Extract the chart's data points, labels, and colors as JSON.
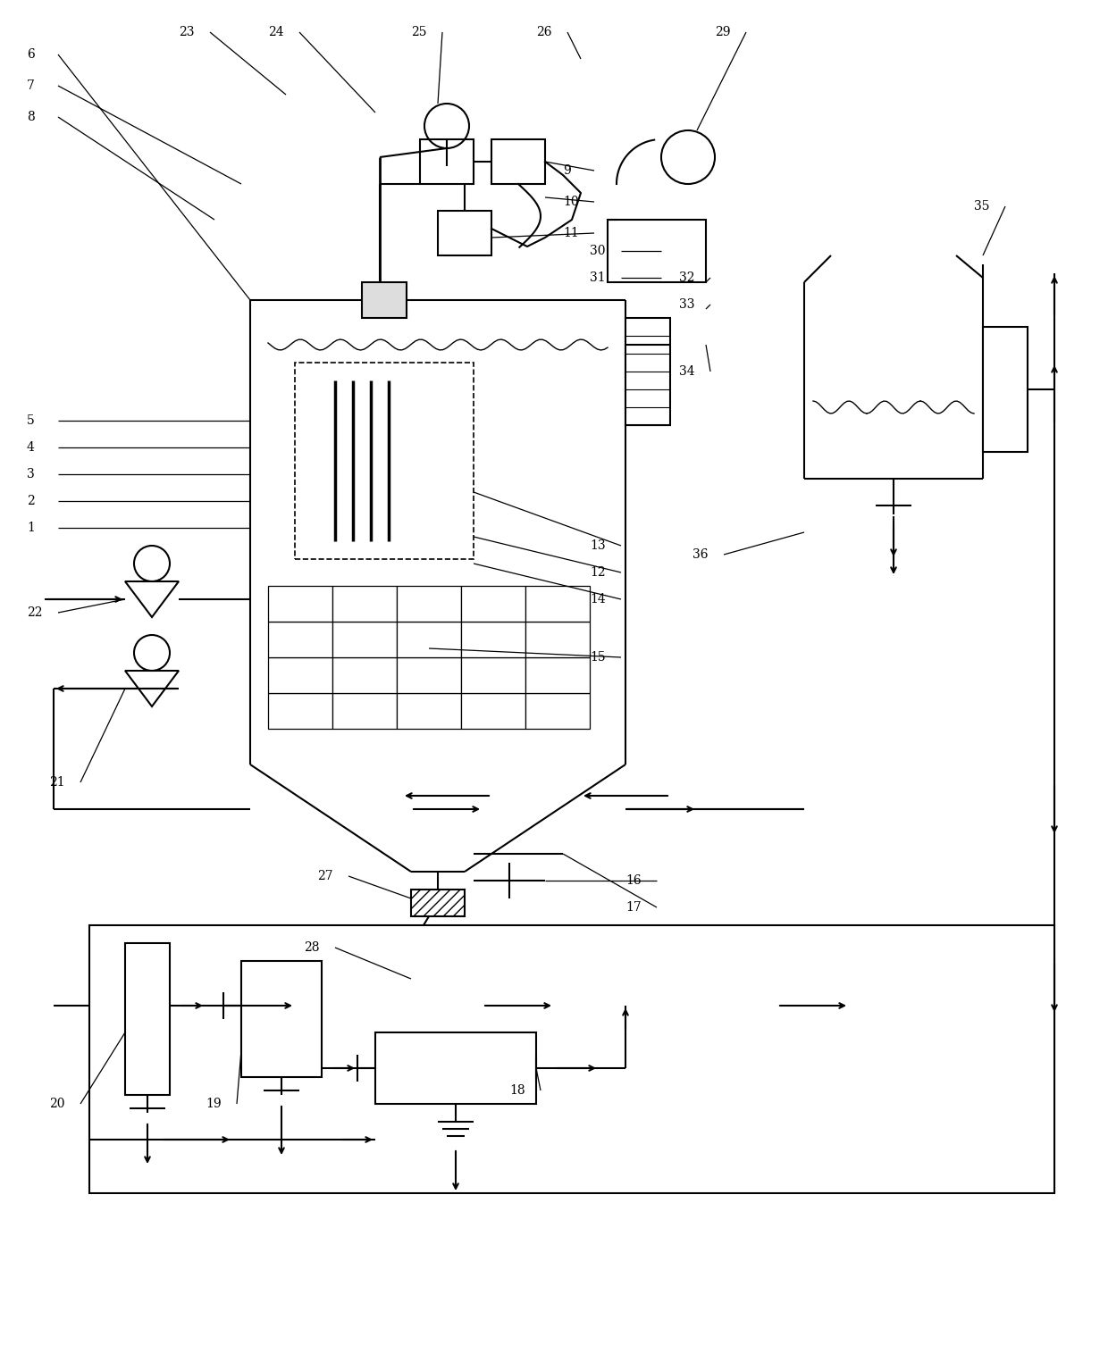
{
  "bg_color": "#ffffff",
  "lc": "#000000",
  "lw": 1.5,
  "fig_width": 12.4,
  "fig_height": 15.06,
  "labels": [
    [
      "1",
      3.0,
      91.5
    ],
    [
      "2",
      3.0,
      94.5
    ],
    [
      "3",
      3.0,
      97.5
    ],
    [
      "4",
      3.0,
      100.5
    ],
    [
      "5",
      3.0,
      103.5
    ],
    [
      "6",
      3.0,
      144.5
    ],
    [
      "7",
      3.0,
      141.0
    ],
    [
      "8",
      3.0,
      137.5
    ],
    [
      "9",
      63.0,
      131.5
    ],
    [
      "10",
      63.0,
      128.0
    ],
    [
      "11",
      63.0,
      124.5
    ],
    [
      "12",
      66.0,
      86.5
    ],
    [
      "13",
      66.0,
      89.5
    ],
    [
      "14",
      66.0,
      83.5
    ],
    [
      "15",
      66.0,
      77.0
    ],
    [
      "16",
      70.0,
      52.0
    ],
    [
      "17",
      70.0,
      49.0
    ],
    [
      "18",
      57.0,
      28.5
    ],
    [
      "19",
      23.0,
      27.0
    ],
    [
      "20",
      5.5,
      27.0
    ],
    [
      "21",
      5.5,
      63.0
    ],
    [
      "22",
      3.0,
      82.0
    ],
    [
      "23",
      20.0,
      147.0
    ],
    [
      "24",
      30.0,
      147.0
    ],
    [
      "25",
      46.0,
      147.0
    ],
    [
      "26",
      60.0,
      147.0
    ],
    [
      "27",
      35.5,
      52.5
    ],
    [
      "28",
      34.0,
      44.5
    ],
    [
      "29",
      80.0,
      147.0
    ],
    [
      "30",
      66.0,
      122.5
    ],
    [
      "31",
      66.0,
      119.5
    ],
    [
      "32",
      76.0,
      119.5
    ],
    [
      "33",
      76.0,
      116.5
    ],
    [
      "34",
      76.0,
      109.0
    ],
    [
      "35",
      109.0,
      127.5
    ],
    [
      "36",
      77.5,
      88.5
    ]
  ]
}
